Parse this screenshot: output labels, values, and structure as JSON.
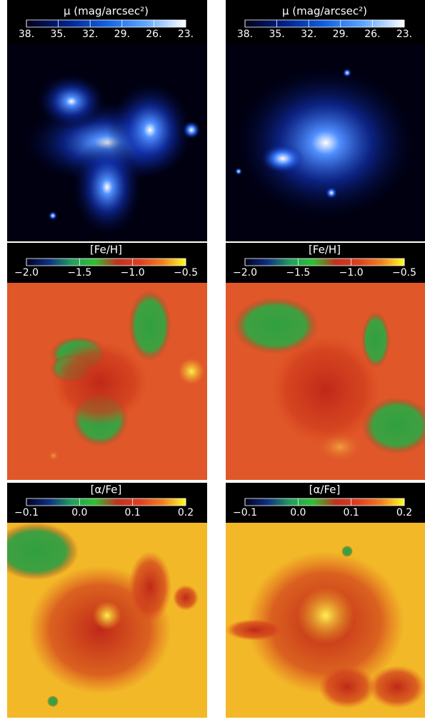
{
  "panels": [
    {
      "colorbar": {
        "label": "μ (mag/arcsec²)",
        "lim": [
          38,
          23
        ],
        "colors": [
          "#000018",
          "#00208a",
          "#1060e0",
          "#60a8ff",
          "#ffffff"
        ],
        "ticks": [
          {
            "value": 38,
            "label": "38."
          },
          {
            "value": 35,
            "label": "35."
          },
          {
            "value": 32,
            "label": "32."
          },
          {
            "value": 29,
            "label": "29."
          },
          {
            "value": 26,
            "label": "26."
          },
          {
            "value": 23,
            "label": "23."
          }
        ]
      }
    },
    {
      "colorbar": {
        "label": "μ (mag/arcsec²)",
        "lim": [
          38,
          23
        ],
        "colors": [
          "#000018",
          "#00208a",
          "#1060e0",
          "#60a8ff",
          "#ffffff"
        ],
        "ticks": [
          {
            "value": 38,
            "label": "38."
          },
          {
            "value": 35,
            "label": "35."
          },
          {
            "value": 32,
            "label": "32."
          },
          {
            "value": 29,
            "label": "29."
          },
          {
            "value": 26,
            "label": "26."
          },
          {
            "value": 23,
            "label": "23."
          }
        ]
      }
    },
    {
      "colorbar": {
        "label": "[Fe/H]",
        "lim": [
          -2.0,
          -0.5
        ],
        "colors": [
          "#000020",
          "#103080",
          "#20a060",
          "#30c030",
          "#c03020",
          "#e04020",
          "#f08020",
          "#ffff20"
        ],
        "ticks": [
          {
            "value": -2.0,
            "label": "−2.0"
          },
          {
            "value": -1.5,
            "label": "−1.5"
          },
          {
            "value": -1.0,
            "label": "−1.0"
          },
          {
            "value": -0.5,
            "label": "−0.5"
          }
        ]
      }
    },
    {
      "colorbar": {
        "label": "[Fe/H]",
        "lim": [
          -2.0,
          -0.5
        ],
        "colors": [
          "#000020",
          "#103080",
          "#20a060",
          "#30c030",
          "#c03020",
          "#e04020",
          "#f08020",
          "#ffff20"
        ],
        "ticks": [
          {
            "value": -2.0,
            "label": "−2.0"
          },
          {
            "value": -1.5,
            "label": "−1.5"
          },
          {
            "value": -1.0,
            "label": "−1.0"
          },
          {
            "value": -0.5,
            "label": "−0.5"
          }
        ]
      }
    },
    {
      "colorbar": {
        "label": "[α/Fe]",
        "lim": [
          -0.1,
          0.2
        ],
        "colors": [
          "#000020",
          "#103080",
          "#20a060",
          "#30c030",
          "#c03020",
          "#e04020",
          "#f08020",
          "#ffff20"
        ],
        "ticks": [
          {
            "value": -0.1,
            "label": "−0.1"
          },
          {
            "value": 0,
            "label": "0.0"
          },
          0.1,
          0.2
        ]
      }
    },
    {
      "colorbar": {
        "label": "[α/Fe]",
        "lim": [
          -0.1,
          0.2
        ],
        "colors": [
          "#000020",
          "#103080",
          "#20a060",
          "#30c030",
          "#c03020",
          "#e04020",
          "#f08020",
          "#ffff20"
        ],
        "ticks": [
          {
            "value": -0.1,
            "label": "−0.1"
          },
          {
            "value": 0,
            "label": "0.0"
          },
          0.1,
          0.2
        ]
      }
    }
  ]
}
